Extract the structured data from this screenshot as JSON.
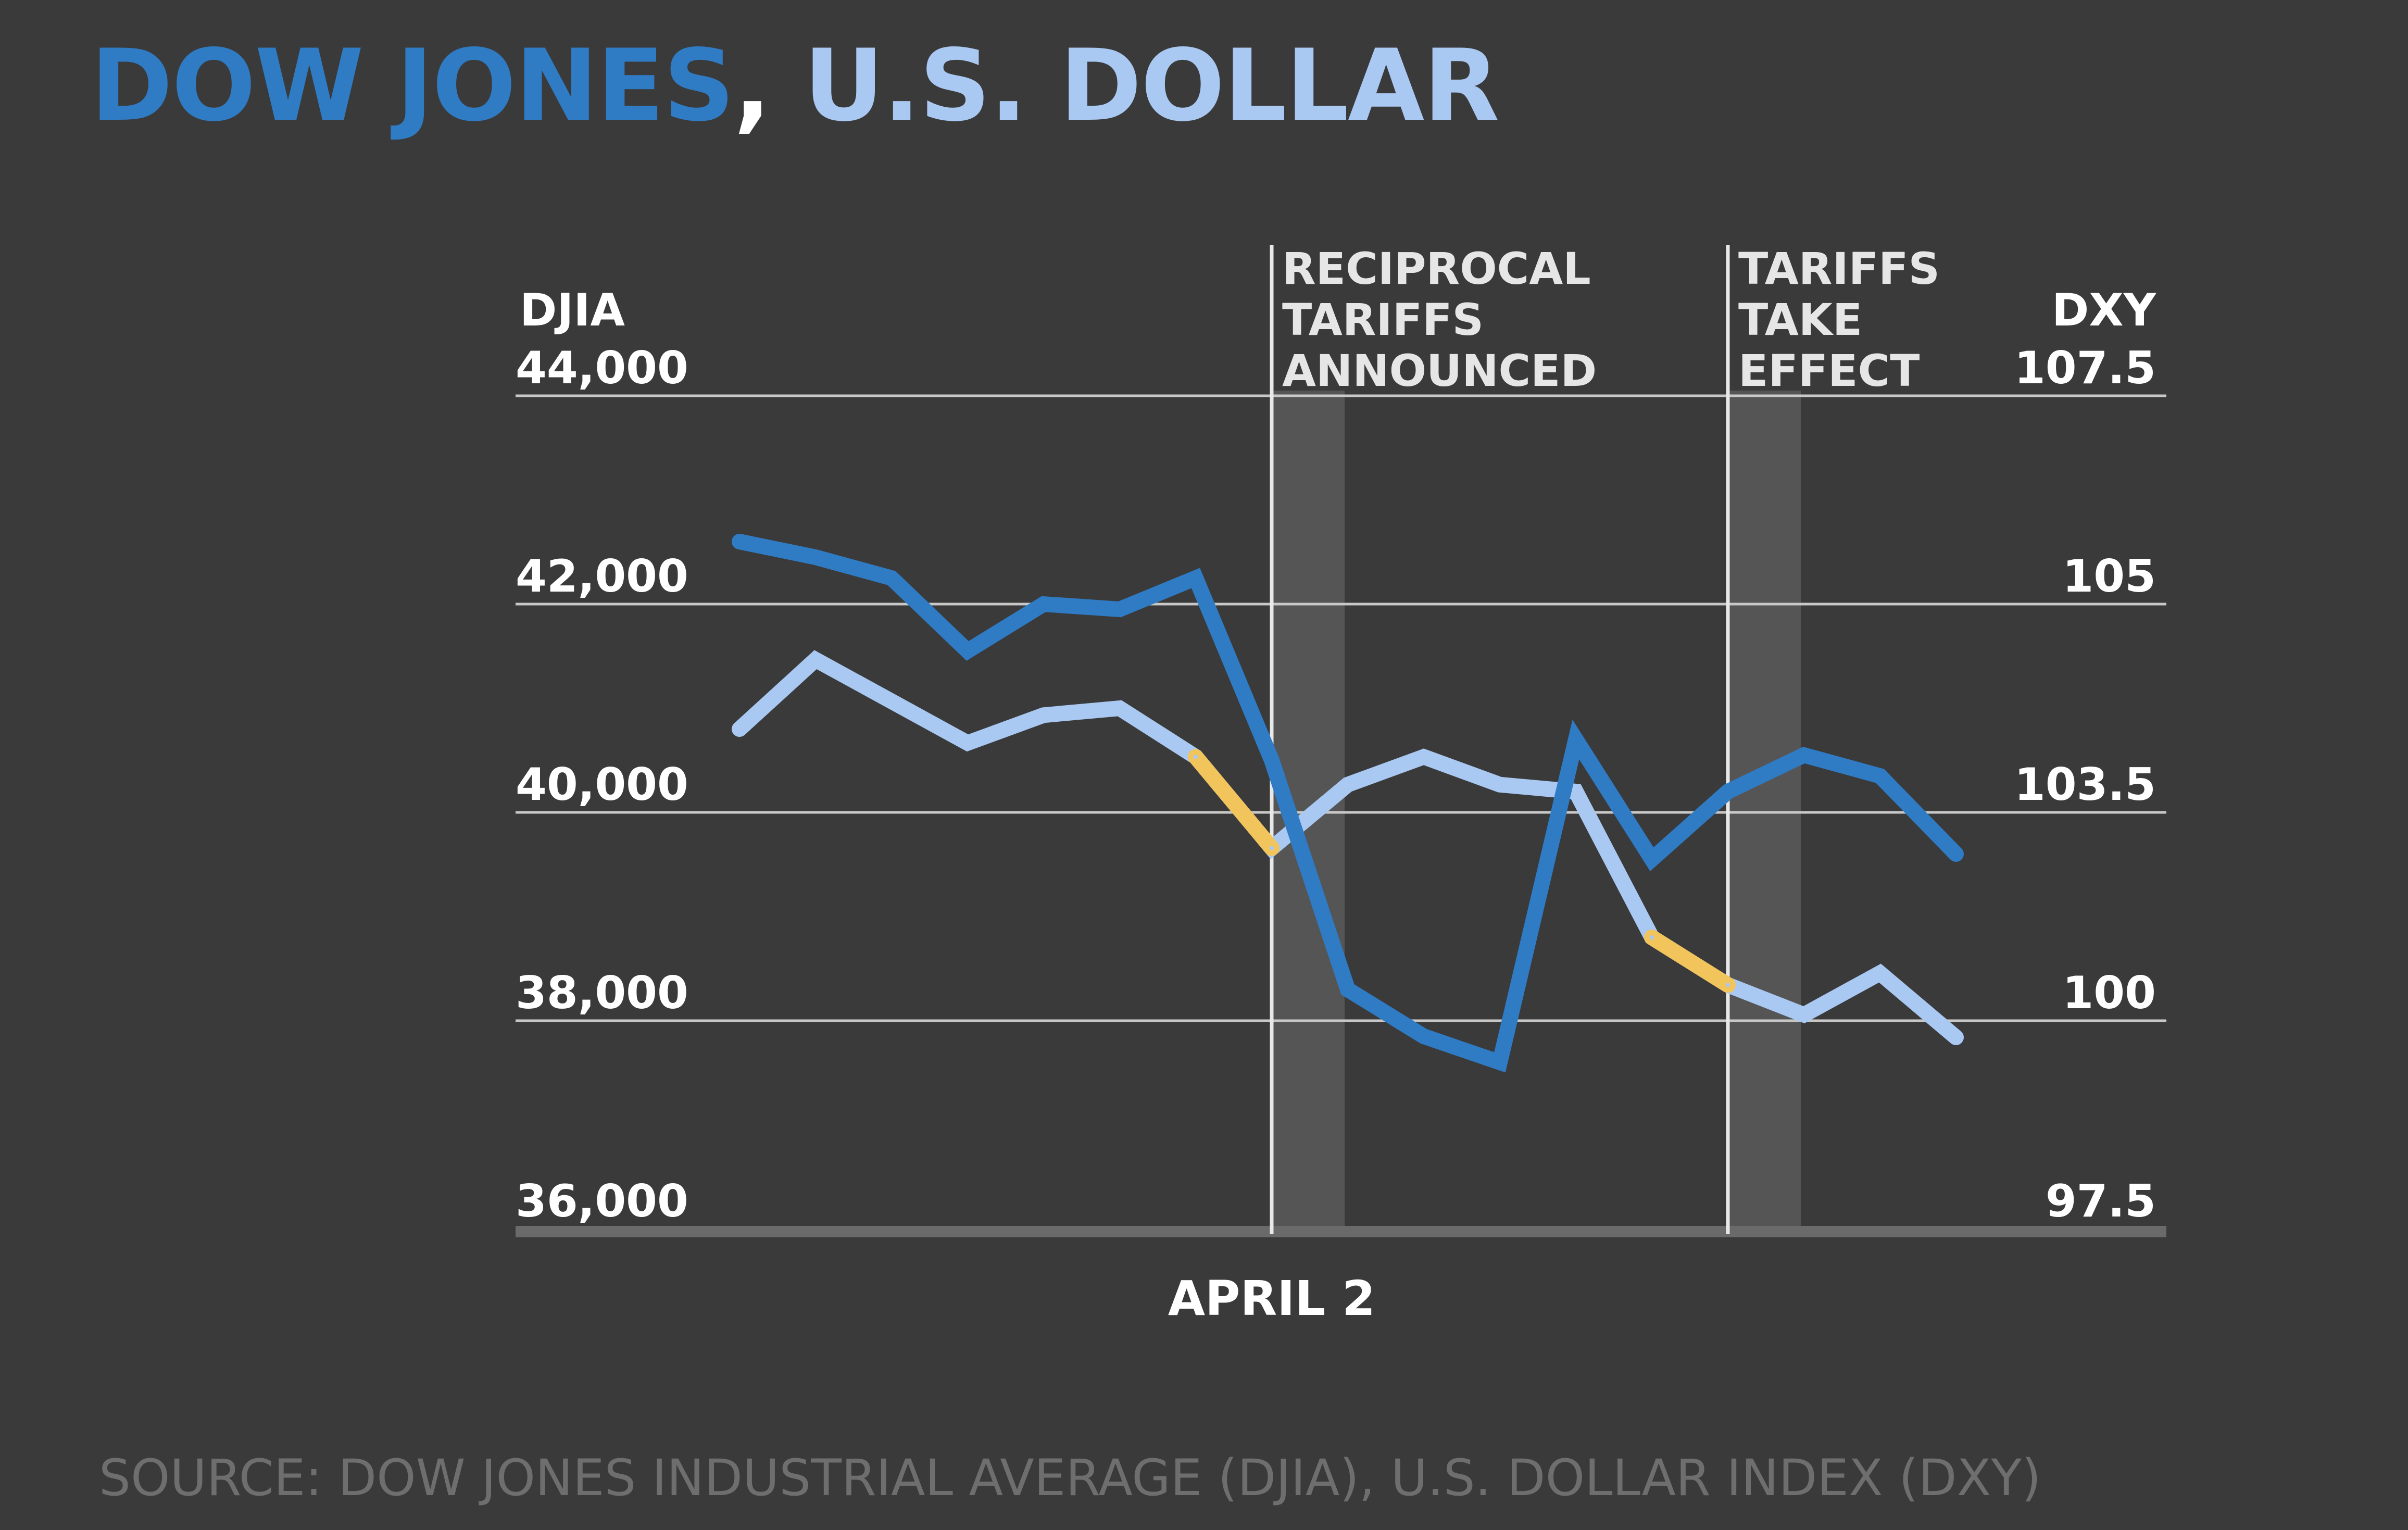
{
  "title": {
    "part1": "DOW JONES",
    "separator": ", ",
    "part2": "U.S. DOLLAR"
  },
  "source": "SOURCE: DOW JONES INDUSTRIAL AVERAGE (DJIA), U.S. DOLLAR INDEX (DXY)",
  "colors": {
    "background": "#3a3a3a",
    "djia": "#2f7bc4",
    "dxy": "#a9c8f2",
    "highlight": "#f2c45c",
    "grid": "#c8c8c8",
    "shade": "#555555",
    "axis_text": "#ffffff"
  },
  "chart_data": {
    "type": "line",
    "left_axis": {
      "label": "DJIA",
      "ylim": [
        36000,
        44000
      ],
      "ticks": [
        "44,000",
        "42,000",
        "40,000",
        "38,000",
        "36,000"
      ]
    },
    "right_axis": {
      "label": "DXY",
      "ticks": [
        "107.5",
        "105",
        "103.5",
        "100",
        "97.5"
      ]
    },
    "x_labels": [
      {
        "label": "APRIL 2",
        "index": 7
      }
    ],
    "annotations": [
      {
        "lines": [
          "RECIPROCAL",
          "TARIFFS",
          "ANNOUNCED"
        ],
        "index": 7
      },
      {
        "lines": [
          "TARIFFS",
          "TAKE",
          "EFFECT"
        ],
        "index": 13
      }
    ],
    "series": [
      {
        "name": "DJIA",
        "axis": "left",
        "values": [
          42600,
          42450,
          42250,
          41550,
          42000,
          41950,
          42250,
          40500,
          38300,
          37850,
          37600,
          40700,
          39550,
          40200,
          40550,
          40350,
          39600
        ]
      },
      {
        "name": "DXY",
        "axis": "right",
        "values": [
          104.1,
          104.6,
          104.3,
          104.0,
          104.2,
          104.25,
          103.9,
          102.9,
          103.7,
          103.9,
          103.7,
          103.65,
          101.4,
          100.6,
          100.1,
          100.8,
          99.8
        ]
      }
    ]
  }
}
